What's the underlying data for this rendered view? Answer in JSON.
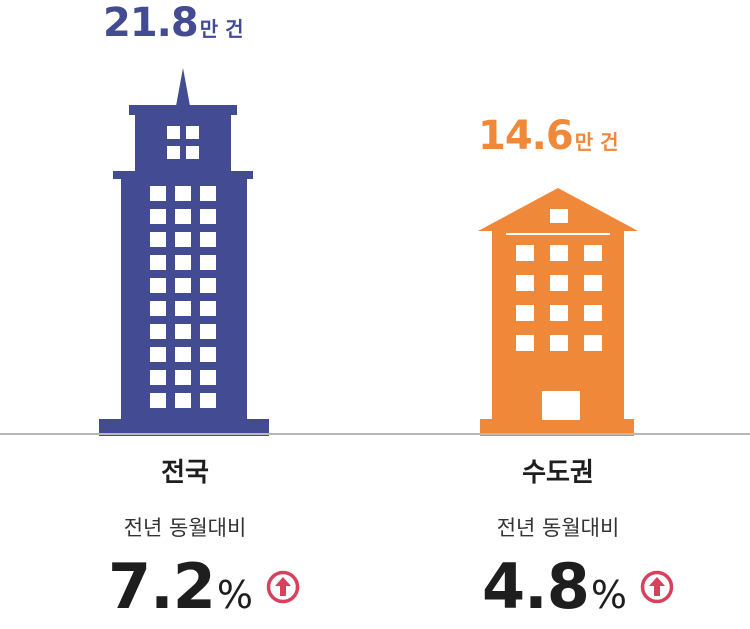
{
  "chart_data": {
    "type": "bar",
    "categories": [
      "전국",
      "수도권"
    ],
    "values": [
      21.8,
      14.6
    ],
    "value_labels": [
      "21.8",
      "14.6"
    ],
    "unit": "만 건",
    "subtitle": "전년 동월대비",
    "changes": [
      "7.2",
      "4.8"
    ],
    "change_unit": "%",
    "change_direction": [
      "up",
      "up"
    ],
    "colors": [
      "#434b92",
      "#f0883a"
    ],
    "arrow_color": "#d8415e"
  },
  "icons": {
    "building_1": "skyscraper-icon",
    "building_2": "apartment-building-icon",
    "arrow": "arrow-up-circle-icon"
  }
}
